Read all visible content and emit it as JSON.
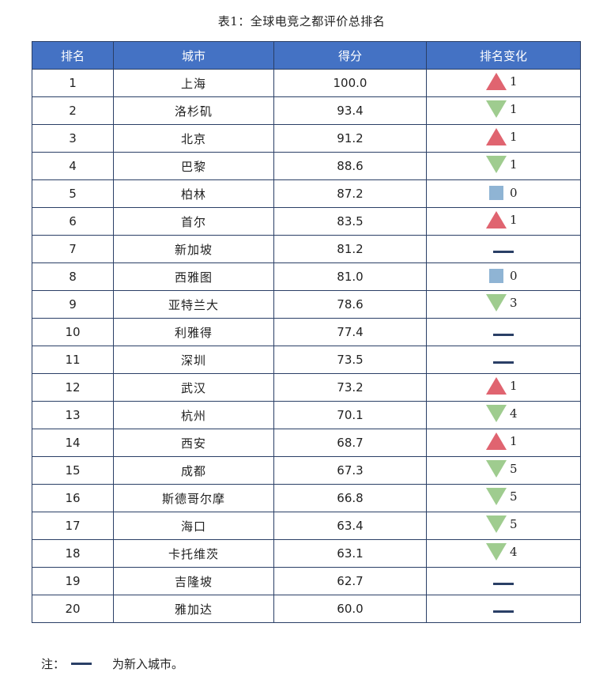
{
  "title": "表1：全球电竞之都评价总排名",
  "headers": [
    "排名",
    "城市",
    "得分",
    "排名变化"
  ],
  "colors": {
    "header_bg": "#4472c4",
    "up": "#e06470",
    "down": "#9fcc8f",
    "same": "#8fb4d4",
    "new": "#2a3f66"
  },
  "rows": [
    {
      "rank": "1",
      "city": "上海",
      "score": "100.0",
      "change_type": "up",
      "change": "1"
    },
    {
      "rank": "2",
      "city": "洛杉矶",
      "score": "93.4",
      "change_type": "down",
      "change": "1"
    },
    {
      "rank": "3",
      "city": "北京",
      "score": "91.2",
      "change_type": "up",
      "change": "1"
    },
    {
      "rank": "4",
      "city": "巴黎",
      "score": "88.6",
      "change_type": "down",
      "change": "1"
    },
    {
      "rank": "5",
      "city": "柏林",
      "score": "87.2",
      "change_type": "same",
      "change": "0"
    },
    {
      "rank": "6",
      "city": "首尔",
      "score": "83.5",
      "change_type": "up",
      "change": "1"
    },
    {
      "rank": "7",
      "city": "新加坡",
      "score": "81.2",
      "change_type": "new",
      "change": ""
    },
    {
      "rank": "8",
      "city": "西雅图",
      "score": "81.0",
      "change_type": "same",
      "change": "0"
    },
    {
      "rank": "9",
      "city": "亚特兰大",
      "score": "78.6",
      "change_type": "down",
      "change": "3"
    },
    {
      "rank": "10",
      "city": "利雅得",
      "score": "77.4",
      "change_type": "new",
      "change": ""
    },
    {
      "rank": "11",
      "city": "深圳",
      "score": "73.5",
      "change_type": "new",
      "change": ""
    },
    {
      "rank": "12",
      "city": "武汉",
      "score": "73.2",
      "change_type": "up",
      "change": "1"
    },
    {
      "rank": "13",
      "city": "杭州",
      "score": "70.1",
      "change_type": "down",
      "change": "4"
    },
    {
      "rank": "14",
      "city": "西安",
      "score": "68.7",
      "change_type": "up",
      "change": "1"
    },
    {
      "rank": "15",
      "city": "成都",
      "score": "67.3",
      "change_type": "down",
      "change": "5"
    },
    {
      "rank": "16",
      "city": "斯德哥尔摩",
      "score": "66.8",
      "change_type": "down",
      "change": "5"
    },
    {
      "rank": "17",
      "city": "海口",
      "score": "63.4",
      "change_type": "down",
      "change": "5"
    },
    {
      "rank": "18",
      "city": "卡托维茨",
      "score": "63.1",
      "change_type": "down",
      "change": "4"
    },
    {
      "rank": "19",
      "city": "吉隆坡",
      "score": "62.7",
      "change_type": "new",
      "change": ""
    },
    {
      "rank": "20",
      "city": "雅加达",
      "score": "60.0",
      "change_type": "new",
      "change": ""
    }
  ],
  "note": {
    "prefix": "注：",
    "text": "为新入城市。"
  }
}
